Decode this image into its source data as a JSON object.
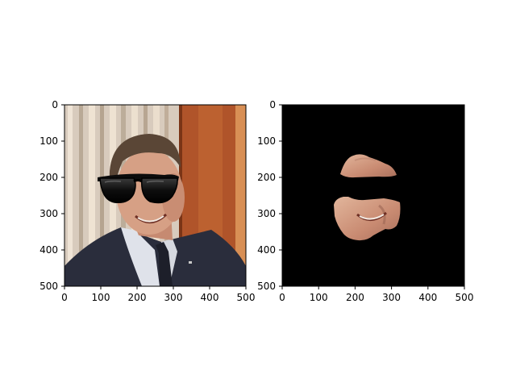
{
  "chart_data": [
    {
      "type": "image",
      "title": "",
      "xlabel": "",
      "ylabel": "",
      "xlim": [
        0,
        500
      ],
      "ylim": [
        500,
        0
      ],
      "xticks": [
        "0",
        "100",
        "200",
        "300",
        "400",
        "500"
      ],
      "yticks": [
        "0",
        "100",
        "200",
        "300",
        "400",
        "500"
      ],
      "content": "original-photo-with-sunglasses"
    },
    {
      "type": "image",
      "title": "",
      "xlabel": "",
      "ylabel": "",
      "xlim": [
        0,
        500
      ],
      "ylim": [
        500,
        0
      ],
      "xticks": [
        "0",
        "100",
        "200",
        "300",
        "400",
        "500"
      ],
      "yticks": [
        "0",
        "100",
        "200",
        "300",
        "400",
        "500"
      ],
      "content": "masked-face-on-black"
    }
  ]
}
